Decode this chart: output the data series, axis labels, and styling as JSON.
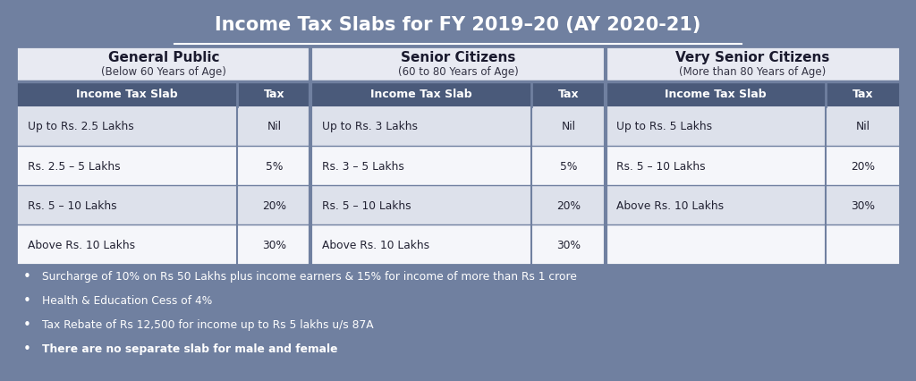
{
  "title": "Income Tax Slabs for FY 2019–20 (AY 2020-21)",
  "bg_color": "#7080a0",
  "section_header_bg": "#e8eaf2",
  "header_dark": "#4a5a7a",
  "lighter_row": "#dde1eb",
  "white_cell": "#f5f6fa",
  "sections": [
    {
      "title": "General Public",
      "subtitle": "(Below 60 Years of Age)",
      "slabs": [
        [
          "Up to Rs. 2.5 Lakhs",
          "Nil"
        ],
        [
          "Rs. 2.5 – 5 Lakhs",
          "5%"
        ],
        [
          "Rs. 5 – 10 Lakhs",
          "20%"
        ],
        [
          "Above Rs. 10 Lakhs",
          "30%"
        ]
      ]
    },
    {
      "title": "Senior Citizens",
      "subtitle": "(60 to 80 Years of Age)",
      "slabs": [
        [
          "Up to Rs. 3 Lakhs",
          "Nil"
        ],
        [
          "Rs. 3 – 5 Lakhs",
          "5%"
        ],
        [
          "Rs. 5 – 10 Lakhs",
          "20%"
        ],
        [
          "Above Rs. 10 Lakhs",
          "30%"
        ]
      ]
    },
    {
      "title": "Very Senior Citizens",
      "subtitle": "(More than 80 Years of Age)",
      "slabs": [
        [
          "Up to Rs. 5 Lakhs",
          "Nil"
        ],
        [
          "Rs. 5 – 10 Lakhs",
          "20%"
        ],
        [
          "Above Rs. 10 Lakhs",
          "30%"
        ],
        [
          "",
          ""
        ]
      ]
    }
  ],
  "notes": [
    "Surcharge of 10% on Rs 50 Lakhs plus income earners & 15% for income of more than Rs 1 crore",
    "Health & Education Cess of 4%",
    "Tax Rebate of Rs 12,500 for income up to Rs 5 lakhs u/s 87A",
    "There are no separate slab for male and female"
  ],
  "note_bold_index": 3
}
